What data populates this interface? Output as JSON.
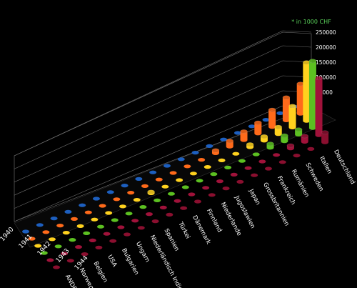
{
  "chart_data": {
    "type": "bar",
    "style": "3d-cylinder",
    "note": "* in 1000 CHF",
    "years": [
      "1940",
      "1941",
      "1942",
      "1943",
      "1944"
    ],
    "categories": [
      "Deutschland",
      "Italien",
      "Schweden",
      "Rumänien",
      "Frankreich",
      "Grossbritannien",
      "Japan",
      "Jugoslawien",
      "Niederlande",
      "Finnland",
      "Dänemark",
      "Türkei",
      "Spanien",
      "Niederländisch Indien",
      "Ungarn",
      "Bulgarien",
      "USA",
      "Belgien",
      "Norwegen",
      "ANDERE"
    ],
    "yticks": [
      "250000",
      "200000",
      "150000",
      "100000",
      "50000",
      "0"
    ],
    "ylim": [
      0,
      250000
    ],
    "series": [
      {
        "name": "1940",
        "values": [
          0,
          0,
          0,
          0,
          0,
          0,
          0,
          0,
          0,
          0,
          0,
          0,
          0,
          0,
          0,
          0,
          0,
          0,
          0,
          0
        ]
      },
      {
        "name": "1941",
        "values": [
          105000,
          80000,
          60000,
          38000,
          30000,
          20000,
          10000,
          0,
          0,
          0,
          0,
          0,
          0,
          0,
          0,
          0,
          0,
          0,
          0,
          0
        ]
      },
      {
        "name": "1942",
        "values": [
          205000,
          75000,
          25000,
          15000,
          10000,
          0,
          0,
          0,
          0,
          0,
          0,
          5000,
          0,
          0,
          0,
          0,
          0,
          0,
          0,
          0
        ]
      },
      {
        "name": "1943",
        "values": [
          235000,
          18000,
          20000,
          14000,
          0,
          0,
          0,
          0,
          0,
          0,
          0,
          0,
          0,
          0,
          0,
          0,
          0,
          0,
          0,
          0
        ]
      },
      {
        "name": "1944",
        "values": [
          200000,
          20000,
          10000,
          0,
          0,
          0,
          0,
          0,
          0,
          0,
          0,
          0,
          0,
          0,
          0,
          0,
          0,
          0,
          0,
          0
        ]
      },
      {
        "name": "ANDERE",
        "values": [
          35000,
          0,
          0,
          0,
          0,
          0,
          0,
          0,
          0,
          0,
          0,
          0,
          0,
          0,
          0,
          0,
          0,
          0,
          0,
          0
        ]
      }
    ],
    "colors": [
      "#1d5fbf",
      "#ff6a1a",
      "#ffd21e",
      "#5cc021",
      "#a0123a",
      "#8a0f2f"
    ],
    "grid": true
  }
}
